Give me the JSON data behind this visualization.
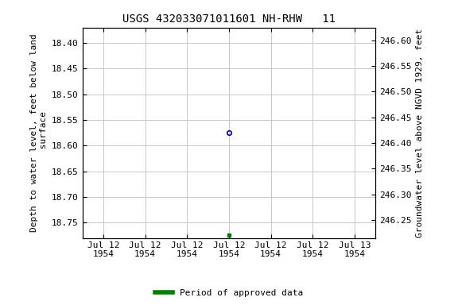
{
  "title": "USGS 432033071011601 NH-RHW   11",
  "ylabel_left": "Depth to water level, feet below land\n surface",
  "ylabel_right": "Groundwater level above NGVD 1929, feet",
  "ylim_left": [
    18.78,
    18.37
  ],
  "ylim_right": [
    246.215,
    246.625
  ],
  "yticks_left": [
    18.4,
    18.45,
    18.5,
    18.55,
    18.6,
    18.65,
    18.7,
    18.75
  ],
  "yticks_right": [
    246.6,
    246.55,
    246.5,
    246.45,
    246.4,
    246.35,
    246.3,
    246.25
  ],
  "xlim": [
    -0.5,
    6.5
  ],
  "xtick_labels": [
    "Jul 12\n1954",
    "Jul 12\n1954",
    "Jul 12\n1954",
    "Jul 12\n1954",
    "Jul 12\n1954",
    "Jul 12\n1954",
    "Jul 13\n1954"
  ],
  "xtick_positions": [
    0,
    1,
    2,
    3,
    4,
    5,
    6
  ],
  "data_point_x": 3.0,
  "data_point_y": 18.575,
  "data_point_color": "#0000cc",
  "data_point_marker": "o",
  "data_point_markersize": 4,
  "green_marker_x": 3.0,
  "green_marker_y": 18.775,
  "green_marker_color": "#008000",
  "green_marker_size": 3,
  "legend_label": "Period of approved data",
  "legend_color": "#008000",
  "background_color": "#ffffff",
  "grid_color": "#c8c8c8",
  "title_fontsize": 10,
  "axis_fontsize": 8,
  "tick_fontsize": 8
}
